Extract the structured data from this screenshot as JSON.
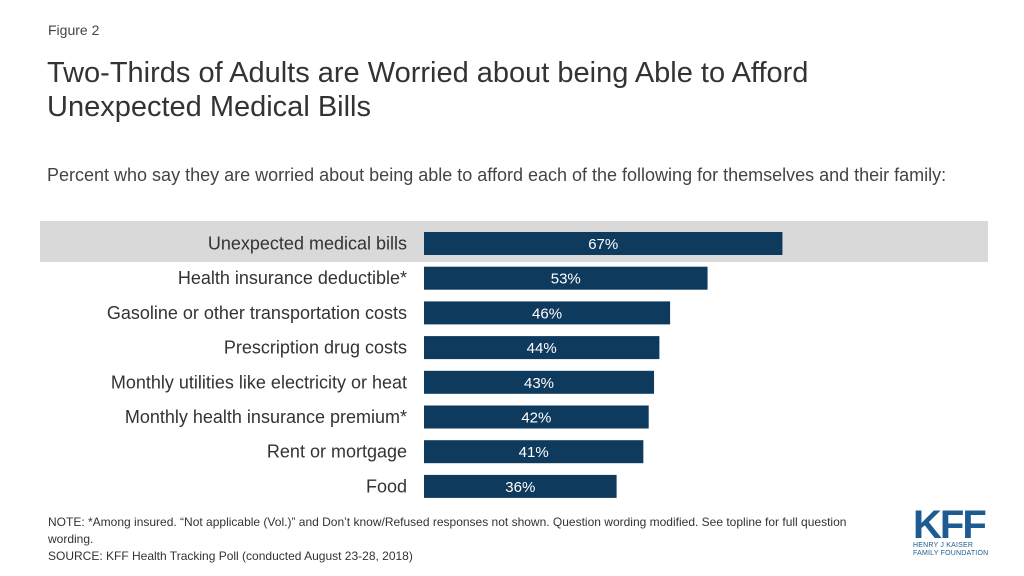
{
  "figure_label": "Figure 2",
  "title": "Two-Thirds of Adults are Worried about being Able to Afford Unexpected Medical Bills",
  "subtitle": "Percent who say they are worried about being able to afford each of the following for themselves and their family:",
  "chart_data": {
    "type": "bar",
    "orientation": "horizontal",
    "title": "Two-Thirds of Adults are Worried about being Able to Afford Unexpected Medical Bills",
    "xlabel": "",
    "ylabel": "",
    "xlim": [
      0,
      100
    ],
    "categories": [
      "Unexpected medical bills",
      "Health insurance deductible*",
      "Gasoline or other transportation costs",
      "Prescription drug costs",
      "Monthly utilities like electricity or heat",
      "Monthly health insurance premium*",
      "Rent or mortgage",
      "Food"
    ],
    "values": [
      67,
      53,
      46,
      44,
      43,
      42,
      41,
      36
    ],
    "value_labels": [
      "67%",
      "53%",
      "46%",
      "44%",
      "43%",
      "42%",
      "41%",
      "36%"
    ],
    "highlighted_category": "Unexpected medical bills",
    "bar_color": "#0e3a5e",
    "highlight_color": "#d9d9d9"
  },
  "note": "NOTE: *Among insured. “Not applicable (Vol.)” and Don’t know/Refused responses not shown. Question wording modified. See topline for full question wording.",
  "source": "SOURCE: KFF Health Tracking Poll (conducted August 23-28, 2018)",
  "logo": {
    "mark": "KFF",
    "line1": "HENRY J KAISER",
    "line2": "FAMILY FOUNDATION",
    "color": "#1f5b93"
  }
}
